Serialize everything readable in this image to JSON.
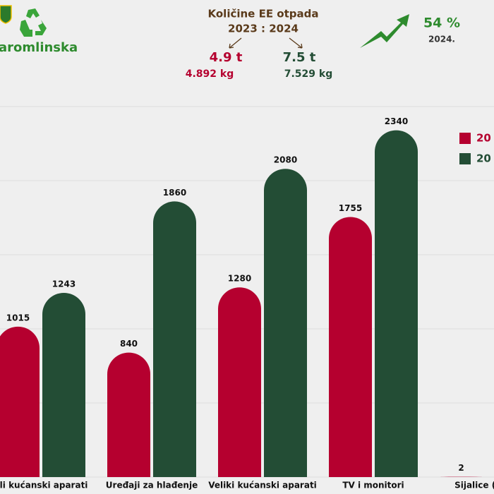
{
  "header": {
    "logo_text": "aromlinska",
    "title": "Količine EE otpada",
    "years": "2023 : 2024",
    "total_2023_t": "4.9 t",
    "total_2024_t": "7.5 t",
    "total_2023_kg": "4.892 kg",
    "total_2024_kg": "7.529 kg",
    "growth": "54 %",
    "growth_year": "2024."
  },
  "chart_data": {
    "type": "bar",
    "categories": [
      "ali kućanski aparati",
      "Uređaji za hlađenje",
      "Veliki kućanski aparati",
      "TV i monitori",
      "Sijalice (fluo"
    ],
    "series": [
      {
        "name": "20",
        "color": "#b5002f",
        "values": [
          1015,
          840,
          1280,
          1755,
          2
        ]
      },
      {
        "name": "20",
        "color": "#234d35",
        "values": [
          1243,
          1860,
          2080,
          2340,
          null
        ]
      }
    ],
    "ylim": [
      0,
      2500
    ],
    "yticks": [
      0,
      500,
      1000,
      1500,
      2000,
      2500
    ],
    "grid": true
  }
}
